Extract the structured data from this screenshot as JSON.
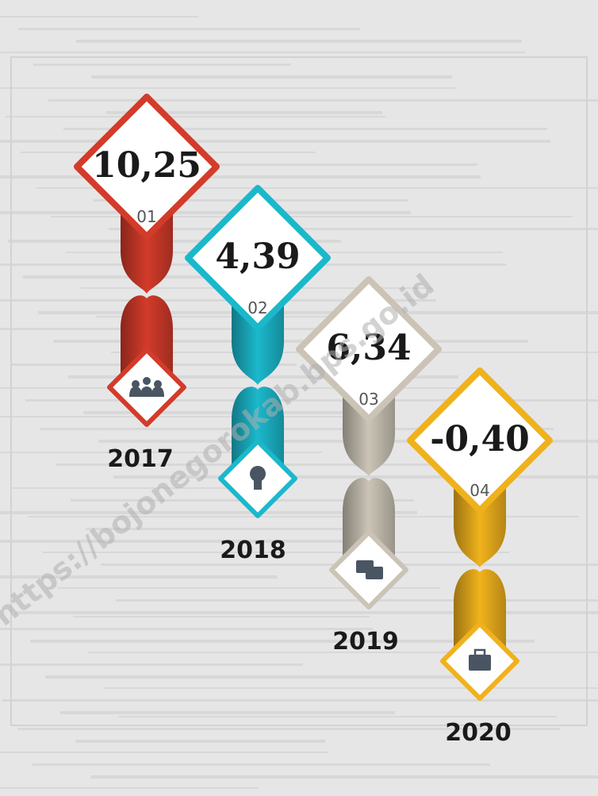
{
  "items": [
    {
      "value": "10,25",
      "number": "01",
      "year": "2017",
      "color": "#d33b2a",
      "icon": "people"
    },
    {
      "value": "4,39",
      "number": "02",
      "year": "2018",
      "color": "#1bb8cc",
      "icon": "bulb"
    },
    {
      "value": "6,34",
      "number": "03",
      "year": "2019",
      "color": "#cbc4b6",
      "icon": "chat"
    },
    {
      "value": "-0,40",
      "number": "04",
      "year": "2020",
      "color": "#f0b21c",
      "icon": "case"
    }
  ],
  "watermark": "https://bojonegorokab.bps.go.id"
}
